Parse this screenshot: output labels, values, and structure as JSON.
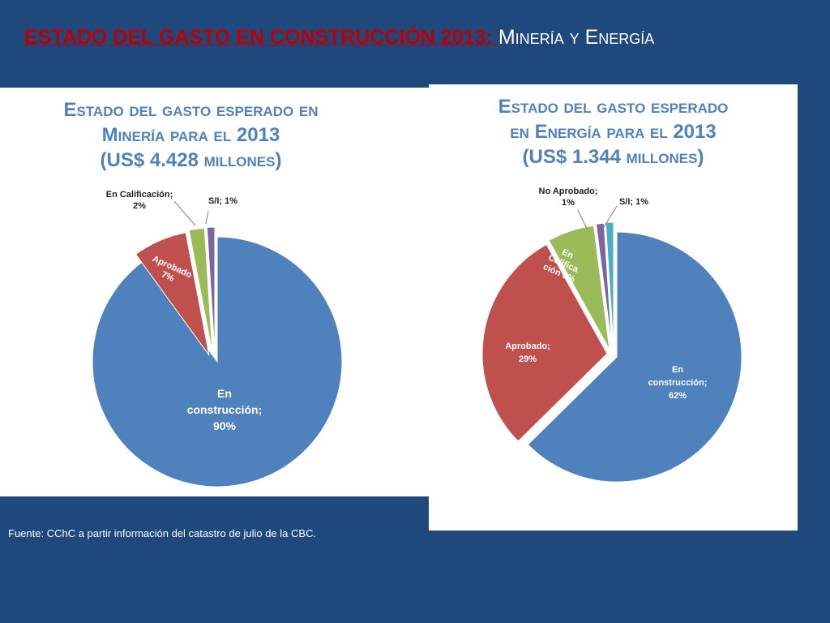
{
  "slide": {
    "title_main": "ESTADO DEL GASTO EN CONSTRUCCIÓN 2013: ",
    "title_sub": "Minería y Energía",
    "source": "Fuente: CChC a partir información del catastro de julio de la CBC."
  },
  "colors": {
    "background": "#1f497d",
    "title_red": "#c00000",
    "chart_title": "#4f81bd",
    "en_construccion": "#4f81bd",
    "aprobado": "#c0504d",
    "en_calificacion": "#9bbb59",
    "no_aprobado": "#8064a2",
    "s_i": "#4bacc6"
  },
  "chart_data": [
    {
      "type": "pie",
      "title_lines": [
        "Estado del gasto esperado en",
        "Minería para el 2013",
        "(US$ 4.428 millones)"
      ],
      "slices": [
        {
          "key": "en_construccion",
          "label_lines": [
            "En",
            "construcción;",
            "90%"
          ],
          "value": 90,
          "color": "#4f81bd"
        },
        {
          "key": "aprobado",
          "label_lines": [
            "Aprobado",
            "7%"
          ],
          "value": 7,
          "color": "#c0504d"
        },
        {
          "key": "en_calificacion",
          "label_lines": [
            "En Calificación;",
            "2%"
          ],
          "value": 2,
          "color": "#9bbb59"
        },
        {
          "key": "s_i",
          "label_lines": [
            "S/I; 1%"
          ],
          "value": 1,
          "color": "#8064a2"
        }
      ]
    },
    {
      "type": "pie",
      "title_lines": [
        "Estado del gasto esperado",
        "en Energía para el 2013",
        "(US$ 1.344 millones)"
      ],
      "slices": [
        {
          "key": "en_construccion",
          "label_lines": [
            "En",
            "construcción;",
            "62%"
          ],
          "value": 62,
          "color": "#4f81bd"
        },
        {
          "key": "aprobado",
          "label_lines": [
            "Aprobado;",
            "29%"
          ],
          "value": 29,
          "color": "#c0504d"
        },
        {
          "key": "en_calificacion",
          "label_lines": [
            "En",
            "Califica",
            "ción 6%"
          ],
          "value": 6,
          "color": "#9bbb59"
        },
        {
          "key": "no_aprobado",
          "label_lines": [
            "No Aprobado;",
            "1%"
          ],
          "value": 1,
          "color": "#8064a2"
        },
        {
          "key": "s_i",
          "label_lines": [
            "S/I; 1%"
          ],
          "value": 1,
          "color": "#4bacc6"
        }
      ]
    }
  ]
}
